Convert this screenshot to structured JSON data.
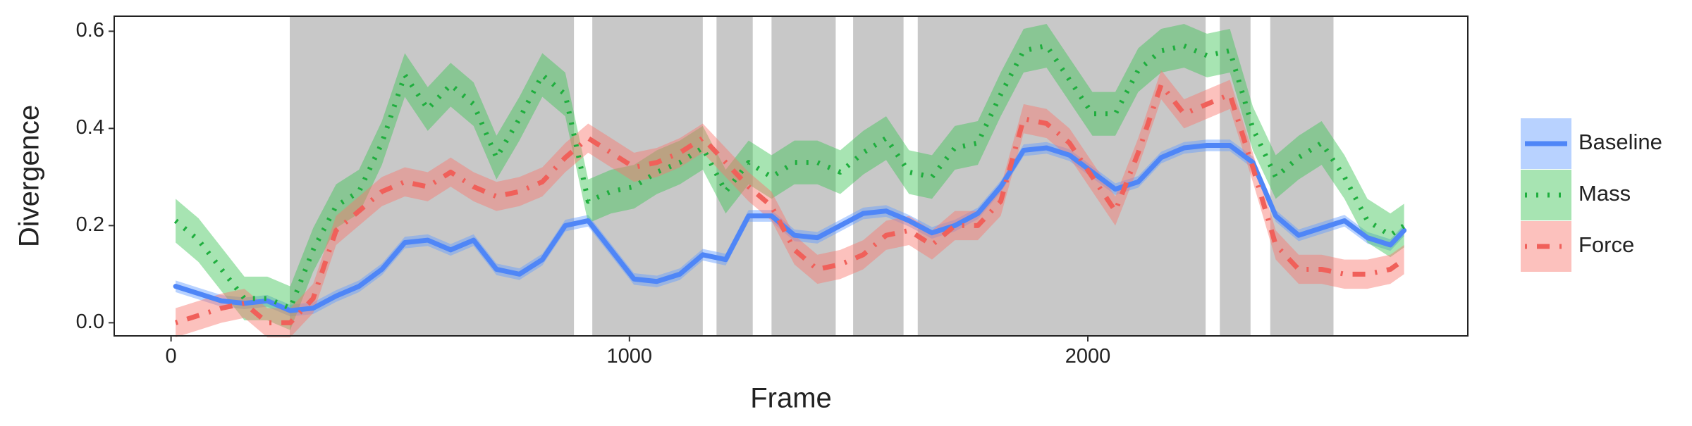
{
  "chart_data": {
    "type": "line",
    "xlabel": "Frame",
    "ylabel": "Divergence",
    "xlim": [
      -124,
      2829
    ],
    "ylim": [
      -0.027,
      0.631
    ],
    "xticks": [
      0,
      1000,
      2000
    ],
    "yticks": [
      {
        "value": 0,
        "label": "0.0"
      },
      0.2,
      0.4,
      0.6
    ],
    "shaded_regions": [
      [
        259,
        879
      ],
      [
        919,
        1160
      ],
      [
        1190,
        1269
      ],
      [
        1310,
        1450
      ],
      [
        1488,
        1598
      ],
      [
        1629,
        2257
      ],
      [
        2288,
        2355
      ],
      [
        2398,
        2536
      ]
    ],
    "shade_color": "#c8c8c8",
    "x": [
      10,
      60,
      110,
      160,
      210,
      260,
      310,
      360,
      410,
      460,
      510,
      560,
      610,
      660,
      710,
      760,
      810,
      860,
      910,
      960,
      1010,
      1060,
      1110,
      1160,
      1210,
      1260,
      1310,
      1360,
      1410,
      1460,
      1510,
      1560,
      1610,
      1660,
      1710,
      1760,
      1810,
      1860,
      1910,
      1960,
      2010,
      2060,
      2110,
      2160,
      2210,
      2260,
      2310,
      2360,
      2410,
      2460,
      2510,
      2560,
      2610,
      2660,
      2690
    ],
    "series": [
      {
        "name": "Baseline",
        "color": "#4f86f7",
        "band_color": "#619cff",
        "dash": "solid",
        "error": 0.012,
        "values": [
          0.075,
          0.06,
          0.045,
          0.04,
          0.045,
          0.025,
          0.03,
          0.055,
          0.075,
          0.11,
          0.165,
          0.17,
          0.15,
          0.17,
          0.11,
          0.1,
          0.13,
          0.2,
          0.21,
          0.15,
          0.09,
          0.085,
          0.1,
          0.14,
          0.13,
          0.22,
          0.22,
          0.18,
          0.175,
          0.2,
          0.225,
          0.23,
          0.21,
          0.185,
          0.2,
          0.225,
          0.28,
          0.355,
          0.36,
          0.345,
          0.31,
          0.275,
          0.29,
          0.34,
          0.36,
          0.365,
          0.365,
          0.33,
          0.22,
          0.18,
          0.195,
          0.21,
          0.175,
          0.16,
          0.19
        ]
      },
      {
        "name": "Mass",
        "color": "#1fae3e",
        "band_color": "#3cc454",
        "dash": "dotted",
        "error": 0.045,
        "values": [
          0.21,
          0.17,
          0.11,
          0.05,
          0.05,
          0.03,
          0.15,
          0.24,
          0.27,
          0.37,
          0.51,
          0.44,
          0.49,
          0.45,
          0.34,
          0.42,
          0.51,
          0.47,
          0.25,
          0.27,
          0.28,
          0.31,
          0.33,
          0.36,
          0.27,
          0.33,
          0.3,
          0.33,
          0.33,
          0.31,
          0.35,
          0.38,
          0.31,
          0.3,
          0.36,
          0.37,
          0.47,
          0.56,
          0.57,
          0.5,
          0.43,
          0.43,
          0.52,
          0.56,
          0.57,
          0.55,
          0.56,
          0.4,
          0.3,
          0.34,
          0.37,
          0.3,
          0.21,
          0.18,
          0.2
        ]
      },
      {
        "name": "Force",
        "color": "#f0605a",
        "band_color": "#f8766d",
        "dash": "dashdot",
        "error": 0.03,
        "values": [
          0.0,
          0.015,
          0.03,
          0.04,
          0.0,
          0.0,
          0.05,
          0.19,
          0.23,
          0.27,
          0.29,
          0.28,
          0.31,
          0.28,
          0.26,
          0.27,
          0.29,
          0.34,
          0.38,
          0.35,
          0.32,
          0.33,
          0.35,
          0.38,
          0.33,
          0.28,
          0.24,
          0.15,
          0.11,
          0.12,
          0.14,
          0.18,
          0.19,
          0.16,
          0.2,
          0.2,
          0.25,
          0.42,
          0.41,
          0.37,
          0.3,
          0.23,
          0.35,
          0.49,
          0.43,
          0.45,
          0.47,
          0.32,
          0.16,
          0.11,
          0.11,
          0.1,
          0.1,
          0.11,
          0.13
        ]
      }
    ]
  }
}
